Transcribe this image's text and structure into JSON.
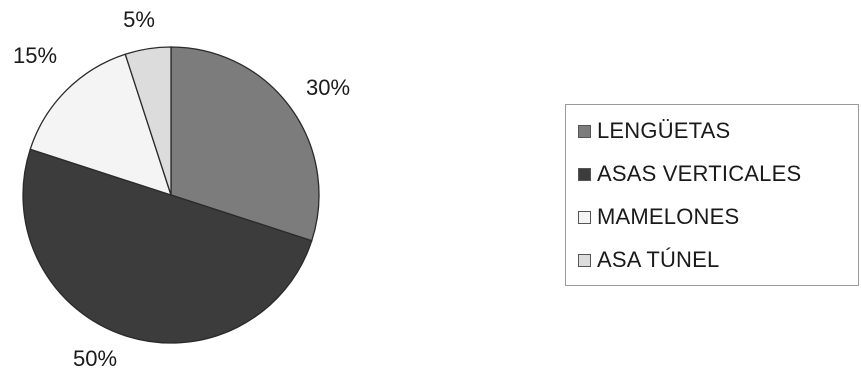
{
  "chart_data": {
    "type": "pie",
    "title": "",
    "slices": [
      {
        "label": "LENGÜETAS",
        "value": 30,
        "display": "30%",
        "color": "#7c7c7c"
      },
      {
        "label": "ASAS VERTICALES",
        "value": 50,
        "display": "50%",
        "color": "#3c3c3c"
      },
      {
        "label": "MAMELONES",
        "value": 15,
        "display": "15%",
        "color": "#f4f4f4"
      },
      {
        "label": "ASA TÚNEL",
        "value": 5,
        "display": "5%",
        "color": "#dcdcdc"
      }
    ],
    "start_angle_deg": 0,
    "direction": "clockwise",
    "legend_position": "right"
  }
}
